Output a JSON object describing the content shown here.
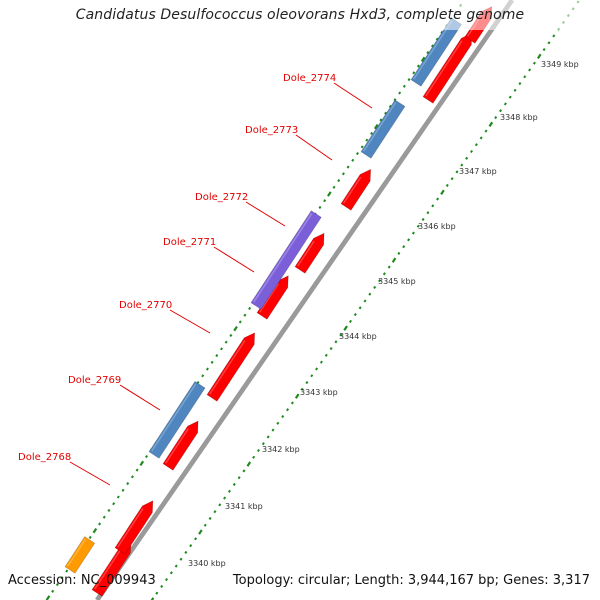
{
  "title": "Candidatus Desulfococcus oleovorans Hxd3, complete genome",
  "accession": "Accession: NC_009943",
  "summary": "Topology: circular; Length: 3,944,167 bp; Genes: 3,317",
  "colors": {
    "forward": "#fe0000",
    "reverse": "#4f86c0",
    "purple": "#7b5fd9",
    "orange": "#ff9a00",
    "tick": "#1e8a1e",
    "label": "#e00000",
    "backbone": "#9a9a9a"
  },
  "scale_labels": [
    "3340 kbp",
    "3341 kbp",
    "3342 kbp",
    "3343 kbp",
    "3344 kbp",
    "3345 kbp",
    "3346 kbp",
    "3347 kbp",
    "3348 kbp",
    "3349 kbp"
  ],
  "gene_labels": [
    "Dole_2768",
    "Dole_2769",
    "Dole_2770",
    "Dole_2771",
    "Dole_2772",
    "Dole_2773",
    "Dole_2774"
  ]
}
